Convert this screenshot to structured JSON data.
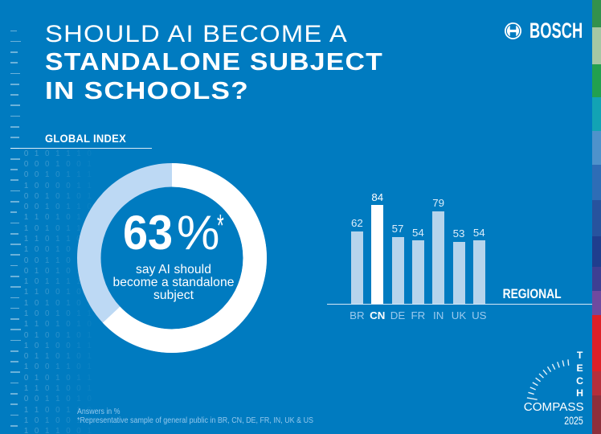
{
  "title": {
    "line1": "SHOULD AI BECOME A",
    "line2": "STANDALONE SUBJECT",
    "line3": "IN SCHOOLS?"
  },
  "brand": {
    "name": "BOSCH"
  },
  "global_index": {
    "label": "GLOBAL INDEX",
    "value": "63",
    "unit": "%",
    "asterisk": "*",
    "caption_lines": [
      "say AI should",
      "become a standalone",
      "subject"
    ]
  },
  "regional": {
    "label": "REGIONAL"
  },
  "footnotes": {
    "line1": "Answers in %",
    "line2": "*Representative sample of general public in BR, CN, DE, FR, IN, UK & US"
  },
  "logo": {
    "tech_letters": [
      "T",
      "E",
      "C",
      "H"
    ],
    "compass": "COMPASS",
    "year": "2025"
  },
  "colors": {
    "background": "#007bc0",
    "donut_remainder": "#bdd9f4",
    "donut_share": "#ffffff",
    "bar": "#b6d4ec",
    "bar_highlight": "#ffffff",
    "value_label": "#ddeefb",
    "value_label_highlight": "#ffffff",
    "axis_label": "#9dcaed",
    "axis_label_highlight": "#ffffff"
  },
  "chart_data": [
    {
      "type": "pie",
      "title": "GLOBAL INDEX",
      "unit": "%",
      "slices": [
        {
          "label": "say AI should become a standalone subject",
          "value": 63
        },
        {
          "label": "remainder",
          "value": 37
        }
      ],
      "annotation": "63%* say AI should become a standalone subject"
    },
    {
      "type": "bar",
      "title": "REGIONAL",
      "unit": "%",
      "categories": [
        "BR",
        "CN",
        "DE",
        "FR",
        "IN",
        "UK",
        "US"
      ],
      "values": [
        62,
        84,
        57,
        54,
        79,
        53,
        54
      ],
      "highlighted_category": "CN",
      "ylim": [
        0,
        100
      ],
      "grid": false,
      "legend": false
    }
  ],
  "decoration": {
    "binary_rows": [
      "0101110",
      "0001001",
      "0010111",
      "1000011",
      "0010101",
      "0010110",
      "1101010",
      "1010111",
      "1101101",
      "1001010",
      "0011011",
      "0101010",
      "1011111",
      "1100101",
      "1010101",
      "1001011",
      "1101010",
      "0100101",
      "1010011",
      "0110101",
      "1001101",
      "0101011",
      "1101001",
      "0011010",
      "1100110",
      "1010010",
      "1011001"
    ],
    "binary_col_opacity": [
      0.28,
      0.24,
      0.2,
      0.16,
      0.12,
      0.08,
      0.045
    ],
    "stripe_segments": [
      {
        "name": "green-dark",
        "color": "#33914c",
        "from": 0,
        "to": 34
      },
      {
        "name": "green-sage",
        "color": "#a6c7a3",
        "from": 34,
        "to": 80
      },
      {
        "name": "green",
        "color": "#22a04f",
        "from": 80,
        "to": 121
      },
      {
        "name": "teal",
        "color": "#12a3b4",
        "from": 121,
        "to": 163
      },
      {
        "name": "steel-blue",
        "color": "#4e92cb",
        "from": 163,
        "to": 205
      },
      {
        "name": "blue",
        "color": "#2e6db6",
        "from": 205,
        "to": 249
      },
      {
        "name": "navy",
        "color": "#27539e",
        "from": 249,
        "to": 294
      },
      {
        "name": "navy-dark",
        "color": "#1f3e8e",
        "from": 294,
        "to": 332
      },
      {
        "name": "indigo",
        "color": "#3e3f93",
        "from": 332,
        "to": 362
      },
      {
        "name": "purple",
        "color": "#6f4a9f",
        "from": 362,
        "to": 392
      },
      {
        "name": "red",
        "color": "#dd2027",
        "from": 392,
        "to": 462
      },
      {
        "name": "crimson",
        "color": "#b52f3b",
        "from": 462,
        "to": 492
      },
      {
        "name": "maroon",
        "color": "#8e2f3c",
        "from": 492,
        "to": 540
      }
    ]
  }
}
